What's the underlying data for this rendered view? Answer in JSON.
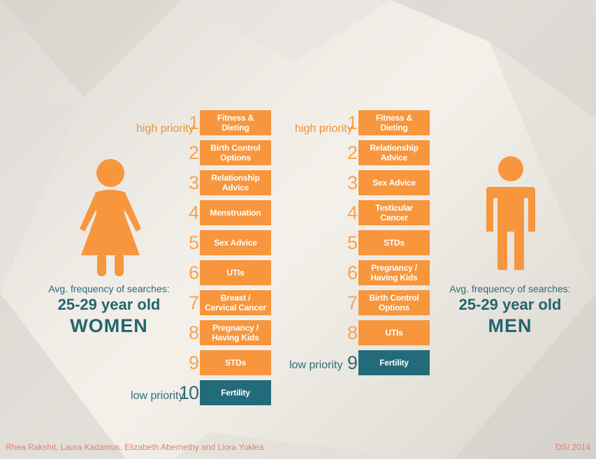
{
  "colors": {
    "orange": "#f7963c",
    "teal": "#236b7a",
    "number_orange": "#f7a351",
    "footer_red": "#e2806e"
  },
  "women": {
    "icon": "woman-icon",
    "avg_label": "Avg. frequency of searches:",
    "age_label": "25-29 year old",
    "gender_label": "WOMEN",
    "high_label": "high priority",
    "low_label": "low priority",
    "items": [
      {
        "rank": "1",
        "label": "Fitness & Dieting"
      },
      {
        "rank": "2",
        "label": "Birth Control Options"
      },
      {
        "rank": "3",
        "label": "Relationship Advice"
      },
      {
        "rank": "4",
        "label": "Menstruation"
      },
      {
        "rank": "5",
        "label": "Sex Advice"
      },
      {
        "rank": "6",
        "label": "UTIs"
      },
      {
        "rank": "7",
        "label": "Breast / Cervical Cancer"
      },
      {
        "rank": "8",
        "label": "Pregnancy / Having Kids"
      },
      {
        "rank": "9",
        "label": "STDs"
      },
      {
        "rank": "10",
        "label": "Fertility"
      }
    ]
  },
  "men": {
    "icon": "man-icon",
    "avg_label": "Avg. frequency of searches:",
    "age_label": "25-29 year old",
    "gender_label": "MEN",
    "high_label": "high priority",
    "low_label": "low priority",
    "items": [
      {
        "rank": "1",
        "label": "Fitness & Dieting"
      },
      {
        "rank": "2",
        "label": "Relationship Advice"
      },
      {
        "rank": "3",
        "label": "Sex Advice"
      },
      {
        "rank": "4",
        "label": "Testicular Cancer"
      },
      {
        "rank": "5",
        "label": "STDs"
      },
      {
        "rank": "6",
        "label": "Pregnancy / Having Kids"
      },
      {
        "rank": "7",
        "label": "Birth Control Options"
      },
      {
        "rank": "8",
        "label": "UTIs"
      },
      {
        "rank": "9",
        "label": "Fertility"
      }
    ]
  },
  "footer": {
    "authors": "Rhea Rakshit, Laura Kadamus, Elizabeth Abernethy and Liora Yuklea",
    "source": "DSI 2014"
  }
}
